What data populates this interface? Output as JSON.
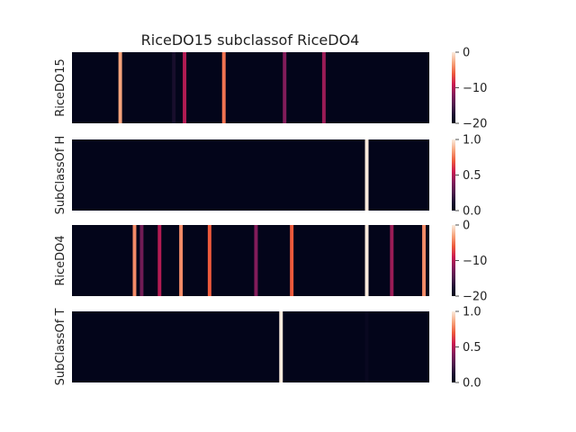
{
  "chart_data": {
    "type": "heatmap",
    "title": "RiceDO15 subclassof RiceDO4",
    "n_columns": 100,
    "panels": [
      {
        "ylabel": "RiceDO15",
        "vmin": -20,
        "vmax": 0,
        "colorbar_ticks": [
          0,
          -10,
          -20
        ],
        "tick_labels": [
          "0",
          "−10",
          "−20"
        ],
        "background": -20,
        "stripes": [
          {
            "col": 13.5,
            "value": -3
          },
          {
            "col": 28.5,
            "value": -18
          },
          {
            "col": 31.5,
            "value": -10
          },
          {
            "col": 42.5,
            "value": -5
          },
          {
            "col": 59.5,
            "value": -12
          },
          {
            "col": 70.5,
            "value": -11
          }
        ]
      },
      {
        "ylabel": "SubClassOf H",
        "vmin": 0,
        "vmax": 1,
        "colorbar_ticks": [
          1.0,
          0.5,
          0.0
        ],
        "tick_labels": [
          "1.0",
          "0.5",
          "0.0"
        ],
        "background": 0,
        "stripes": [
          {
            "col": 82.5,
            "value": 1.0
          }
        ]
      },
      {
        "ylabel": "RiceDO4",
        "vmin": -20,
        "vmax": 0,
        "colorbar_ticks": [
          0,
          -10,
          -20
        ],
        "tick_labels": [
          "0",
          "−10",
          "−20"
        ],
        "background": -20,
        "stripes": [
          {
            "col": 17.5,
            "value": -4
          },
          {
            "col": 19.5,
            "value": -13
          },
          {
            "col": 24.5,
            "value": -10
          },
          {
            "col": 30.5,
            "value": -4
          },
          {
            "col": 38.5,
            "value": -6
          },
          {
            "col": 51.5,
            "value": -12
          },
          {
            "col": 61.5,
            "value": -6
          },
          {
            "col": 82.5,
            "value": 0
          },
          {
            "col": 89.5,
            "value": -11
          },
          {
            "col": 98.5,
            "value": -4
          }
        ]
      },
      {
        "ylabel": "SubClassOf T",
        "vmin": 0,
        "vmax": 1,
        "colorbar_ticks": [
          1.0,
          0.5,
          0.0
        ],
        "tick_labels": [
          "1.0",
          "0.5",
          "0.0"
        ],
        "background": 0,
        "stripes": [
          {
            "col": 58.5,
            "value": 1.0
          },
          {
            "col": 82.5,
            "value": 0.03
          }
        ]
      }
    ],
    "colormap": "rocket"
  }
}
